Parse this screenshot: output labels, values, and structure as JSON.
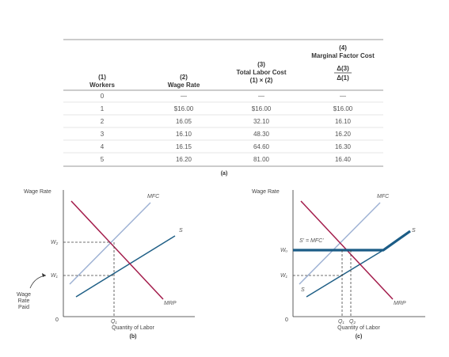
{
  "table": {
    "headers": [
      {
        "num": "(1)",
        "title": "Workers"
      },
      {
        "num": "(2)",
        "title": "Wage Rate"
      },
      {
        "num": "(3)",
        "title": "Total Labor Cost",
        "formula": "(1) × (2)"
      },
      {
        "num": "(4)",
        "title": "Marginal Factor Cost",
        "formula_top": "Δ(3)",
        "formula_bottom": "Δ(1)"
      }
    ],
    "rows": [
      [
        "0",
        "—",
        "—",
        "—"
      ],
      [
        "1",
        "$16.00",
        "$16.00",
        "$16.00"
      ],
      [
        "2",
        "16.05",
        "32.10",
        "16.10"
      ],
      [
        "3",
        "16.10",
        "48.30",
        "16.20"
      ],
      [
        "4",
        "16.15",
        "64.60",
        "16.30"
      ],
      [
        "5",
        "16.20",
        "81.00",
        "16.40"
      ]
    ],
    "caption": "(a)"
  },
  "panel_b": {
    "y_axis_label": "Wage Rate",
    "x_axis_label": "Quantity of Labor",
    "origin": "0",
    "caption": "(b)",
    "curves": {
      "mfc": "MFC",
      "s": "S",
      "mrp": "MRP"
    },
    "y_ticks": {
      "w2": "W₂",
      "w1": "W₁"
    },
    "x_ticks": {
      "q1": "Q₁"
    },
    "annotation": "Wage Rate Paid"
  },
  "panel_c": {
    "y_axis_label": "Wage Rate",
    "x_axis_label": "Quantity of Labor",
    "origin": "0",
    "caption": "(c)",
    "curves": {
      "mfc": "MFC",
      "s_top": "S",
      "mrp": "MRP",
      "s_bottom": "S",
      "s_prime": "S' = MFC'"
    },
    "y_ticks": {
      "wu": "Wᵤ",
      "w1": "W₁"
    },
    "x_ticks": {
      "q1": "Q₁",
      "q2": "Q₂"
    }
  },
  "colors": {
    "mfc": "#9fb2d4",
    "s": "#1f5f86",
    "mrp": "#a31c4b",
    "union": "#1b5c86",
    "rule": "#777777"
  }
}
